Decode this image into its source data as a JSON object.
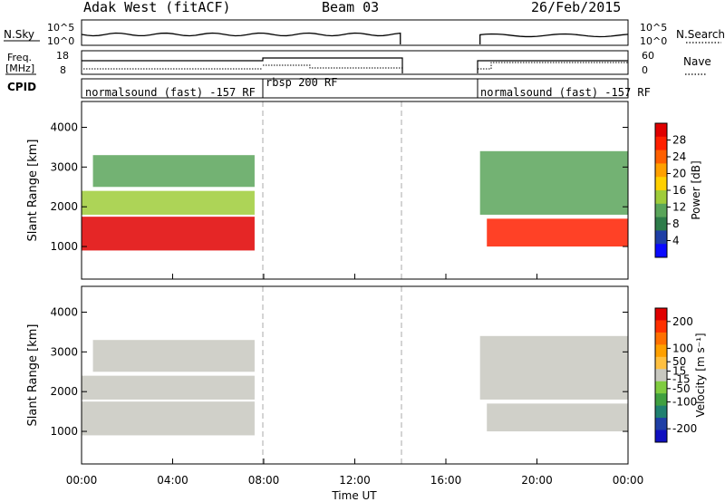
{
  "header": {
    "station": "Adak West (fitACF)",
    "beam": "Beam 03",
    "date": "26/Feb/2015"
  },
  "noise_panel": {
    "left_label": "N.Sky",
    "right_label": "N.Search",
    "ticks": [
      "10^5",
      "10^0"
    ]
  },
  "freq_panel": {
    "left_label_1": "Freq.",
    "left_label_2": "[MHz]",
    "left_ticks": [
      "18",
      "8"
    ],
    "right_label": "Nave",
    "right_ticks": [
      "60",
      "0"
    ]
  },
  "cpid_panel": {
    "label": "CPID",
    "segments": [
      {
        "name": "normalsound (fast) -157 RF",
        "start_hour": 0,
        "end_hour": 8
      },
      {
        "name": "rbsp 200 RF",
        "start_hour": 8,
        "end_hour": 14
      },
      {
        "name": "normalsound (fast) -157 RF",
        "start_hour": 17.5,
        "end_hour": 24
      }
    ]
  },
  "colors": {
    "power": [
      "#0a0aff",
      "#1f3fa6",
      "#2e7c4a",
      "#5aa55a",
      "#9fcc3a",
      "#ffd000",
      "#ffa000",
      "#ff6000",
      "#ff2000",
      "#e00000"
    ],
    "velocity": [
      "#e00000",
      "#ff3000",
      "#ff7000",
      "#ffa000",
      "#ffc040",
      "#c8c8c0",
      "#80cc40",
      "#40a040",
      "#208070",
      "#1f3fa6",
      "#1010c0"
    ]
  },
  "chart_data": [
    {
      "type": "heatmap",
      "title": "Power",
      "xlabel": "Time UT",
      "ylabel": "Slant Range [km]",
      "x_ticks": [
        "00:00",
        "04:00",
        "08:00",
        "12:00",
        "16:00",
        "20:00",
        "00:00"
      ],
      "x_range_hours": [
        0,
        24
      ],
      "y_ticks": [
        1000,
        2000,
        3000,
        4000
      ],
      "y_range_km": [
        180,
        4650
      ],
      "colorbar_label": "Power [dB]",
      "colorbar_ticks": [
        4,
        8,
        12,
        16,
        20,
        24,
        28
      ],
      "colorbar_range": [
        0,
        32
      ],
      "bands": [
        {
          "hours": [
            0,
            7.6
          ],
          "range_km": [
            900,
            1750
          ],
          "value": 30
        },
        {
          "hours": [
            0,
            7.6
          ],
          "range_km": [
            1800,
            2400
          ],
          "value": 14
        },
        {
          "hours": [
            0.5,
            7.6
          ],
          "range_km": [
            2500,
            3300
          ],
          "value": 10
        },
        {
          "hours": [
            17.8,
            24
          ],
          "range_km": [
            1000,
            1700
          ],
          "value": 28
        },
        {
          "hours": [
            17.5,
            24
          ],
          "range_km": [
            1800,
            3400
          ],
          "value": 10
        }
      ],
      "missing_data_hours": [
        [
          14.0,
          17.5
        ]
      ]
    },
    {
      "type": "heatmap",
      "title": "Velocity",
      "xlabel": "Time UT",
      "ylabel": "Slant Range [km]",
      "x_ticks": [
        "00:00",
        "04:00",
        "08:00",
        "12:00",
        "16:00",
        "20:00",
        "00:00"
      ],
      "x_range_hours": [
        0,
        24
      ],
      "y_ticks": [
        1000,
        2000,
        3000,
        4000
      ],
      "y_range_km": [
        180,
        4650
      ],
      "colorbar_label": "Velocity [m s⁻¹]",
      "colorbar_ticks": [
        200,
        100,
        50,
        15,
        -15,
        -50,
        -100,
        -200
      ],
      "colorbar_range": [
        -250,
        250
      ],
      "bands": [
        {
          "hours": [
            0,
            7.6
          ],
          "range_km": [
            900,
            1750
          ],
          "value": 0
        },
        {
          "hours": [
            0,
            7.6
          ],
          "range_km": [
            1800,
            2400
          ],
          "value": 0
        },
        {
          "hours": [
            0.5,
            7.6
          ],
          "range_km": [
            2500,
            3300
          ],
          "value": 0
        },
        {
          "hours": [
            17.8,
            24
          ],
          "range_km": [
            1000,
            1700
          ],
          "value": 0
        },
        {
          "hours": [
            17.5,
            24
          ],
          "range_km": [
            1800,
            3400
          ],
          "value": 0
        }
      ],
      "missing_data_hours": [
        [
          14.0,
          17.5
        ]
      ]
    }
  ]
}
